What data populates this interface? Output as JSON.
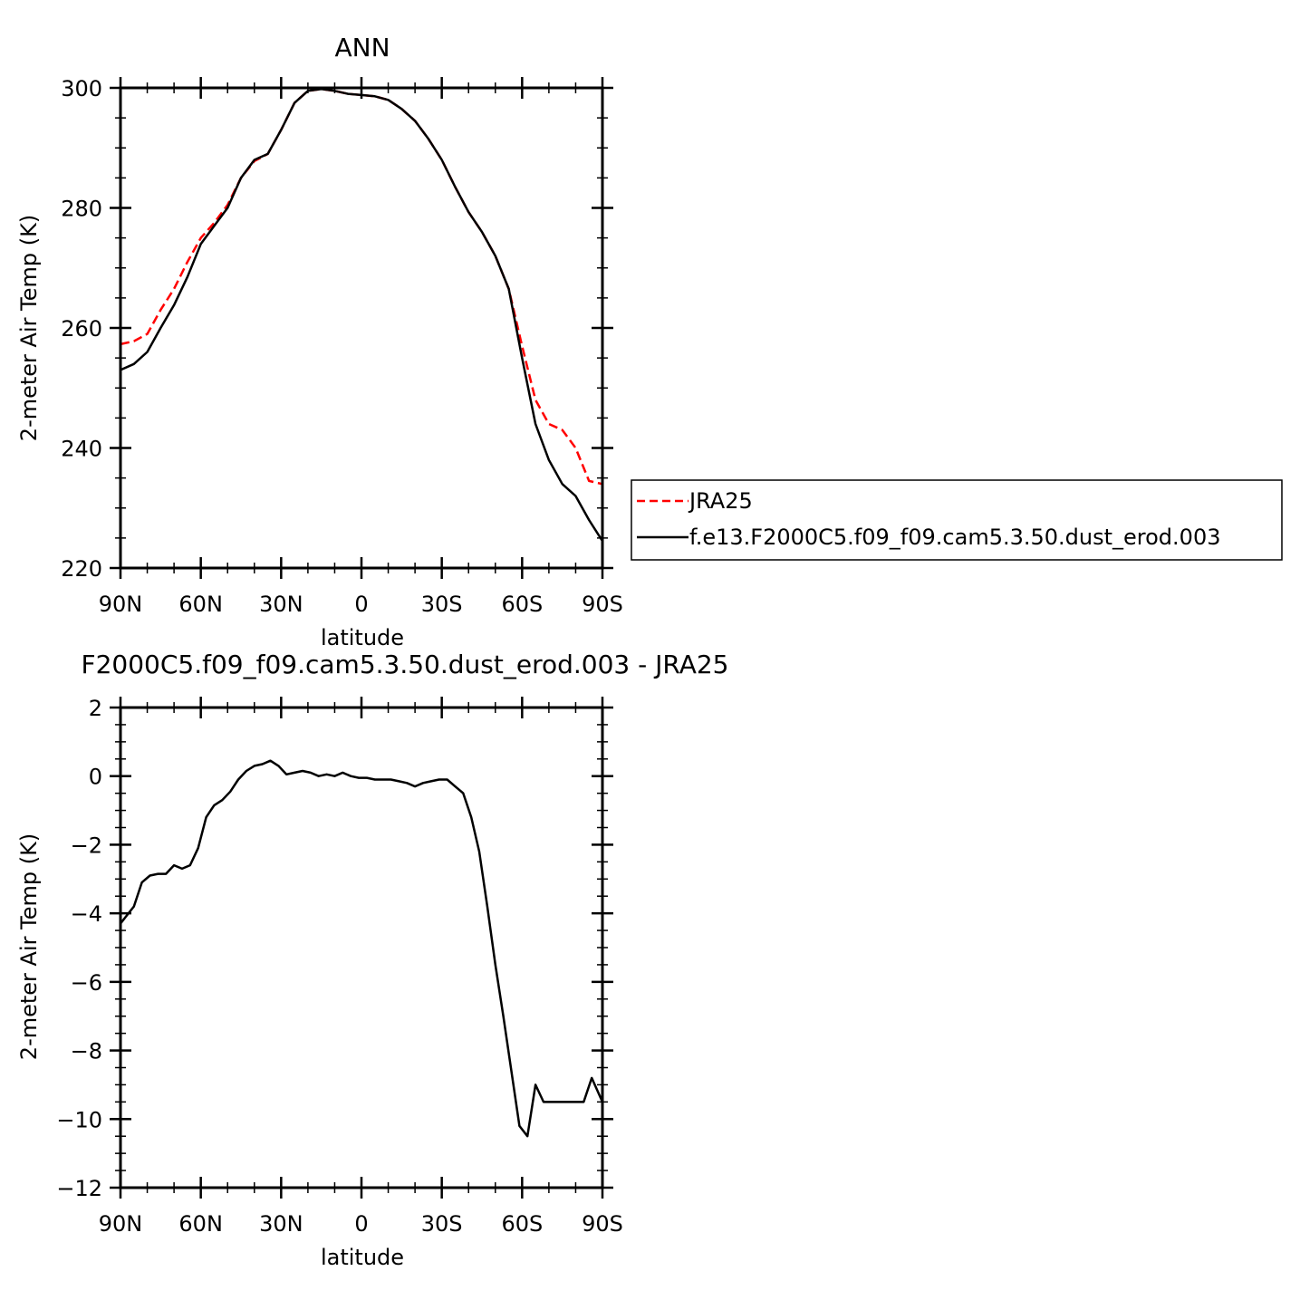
{
  "chart_data": [
    {
      "type": "line",
      "title": "ANN",
      "xlabel": "latitude",
      "ylabel": "2-meter Air Temp (K)",
      "x_ticks": [
        "90N",
        "60N",
        "30N",
        "0",
        "30S",
        "60S",
        "90S"
      ],
      "y_ticks": [
        "220",
        "240",
        "260",
        "280",
        "300"
      ],
      "xlim": [
        90,
        -90
      ],
      "ylim": [
        220,
        300
      ],
      "legend_position": "right",
      "legend": [
        "JRA25",
        "f.e13.F2000C5.f09_f09.cam5.3.50.dust_erod.003"
      ],
      "series": [
        {
          "name": "JRA25",
          "color": "#ff0000",
          "dash": "dashed",
          "x": [
            90,
            85,
            80,
            75,
            70,
            65,
            60,
            55,
            50,
            45,
            40,
            35,
            30,
            25,
            20,
            15,
            10,
            5,
            0,
            -5,
            -10,
            -15,
            -20,
            -25,
            -30,
            -35,
            -40,
            -45,
            -50,
            -55,
            -60,
            -65,
            -70,
            -75,
            -80,
            -85,
            -90
          ],
          "y": [
            257.3,
            257.8,
            259.0,
            263.0,
            266.5,
            271.0,
            275.0,
            277.5,
            280.5,
            285.0,
            287.8,
            289.0,
            293.0,
            297.5,
            299.5,
            299.8,
            299.5,
            299.0,
            298.8,
            298.6,
            298.0,
            296.5,
            294.5,
            291.5,
            288.0,
            283.5,
            279.3,
            276.0,
            272.0,
            266.5,
            257.0,
            248.0,
            244.0,
            243.0,
            240.0,
            234.5,
            234.0
          ]
        },
        {
          "name": "f.e13.F2000C5.f09_f09.cam5.3.50.dust_erod.003",
          "color": "#000000",
          "dash": "solid",
          "x": [
            90,
            85,
            80,
            75,
            70,
            65,
            60,
            55,
            50,
            45,
            40,
            35,
            30,
            25,
            20,
            15,
            10,
            5,
            0,
            -5,
            -10,
            -15,
            -20,
            -25,
            -30,
            -35,
            -40,
            -45,
            -50,
            -55,
            -60,
            -65,
            -70,
            -75,
            -80,
            -85,
            -90
          ],
          "y": [
            253.0,
            254.0,
            256.0,
            260.0,
            263.8,
            268.5,
            274.0,
            277.0,
            280.0,
            285.0,
            288.0,
            289.0,
            293.0,
            297.5,
            299.5,
            299.8,
            299.5,
            299.0,
            298.8,
            298.6,
            298.0,
            296.5,
            294.5,
            291.5,
            288.0,
            283.5,
            279.3,
            276.0,
            272.0,
            266.5,
            255.0,
            244.0,
            238.0,
            234.0,
            232.0,
            228.0,
            224.5
          ]
        }
      ]
    },
    {
      "type": "line",
      "title": "F2000C5.f09_f09.cam5.3.50.dust_erod.003 - JRA25",
      "xlabel": "latitude",
      "ylabel": "2-meter Air Temp (K)",
      "x_ticks": [
        "90N",
        "60N",
        "30N",
        "0",
        "30S",
        "60S",
        "90S"
      ],
      "y_ticks": [
        "-12",
        "-10",
        "-8",
        "-6",
        "-4",
        "-2",
        "0",
        "2"
      ],
      "xlim": [
        90,
        -90
      ],
      "ylim": [
        -12,
        2
      ],
      "series": [
        {
          "color": "#000000",
          "dash": "solid",
          "x": [
            90,
            88,
            85,
            82,
            79,
            76,
            73,
            70,
            67,
            64,
            61,
            58,
            55,
            52,
            49,
            46,
            43,
            40,
            37,
            34,
            31,
            28,
            25,
            22,
            19,
            16,
            13,
            10,
            7,
            4,
            1,
            -2,
            -5,
            -8,
            -11,
            -14,
            -17,
            -20,
            -23,
            -26,
            -29,
            -32,
            -35,
            -38,
            -41,
            -44,
            -47,
            -50,
            -53,
            -56,
            -59,
            -62,
            -65,
            -68,
            -71,
            -74,
            -77,
            -80,
            -83,
            -86,
            -90
          ],
          "y": [
            -4.3,
            -4.1,
            -3.8,
            -3.1,
            -2.9,
            -2.85,
            -2.85,
            -2.6,
            -2.7,
            -2.6,
            -2.1,
            -1.2,
            -0.85,
            -0.7,
            -0.45,
            -0.1,
            0.15,
            0.3,
            0.35,
            0.45,
            0.3,
            0.05,
            0.1,
            0.15,
            0.1,
            0.0,
            0.05,
            0.0,
            0.1,
            0.0,
            -0.05,
            -0.05,
            -0.1,
            -0.1,
            -0.1,
            -0.15,
            -0.2,
            -0.3,
            -0.2,
            -0.15,
            -0.1,
            -0.1,
            -0.3,
            -0.5,
            -1.2,
            -2.2,
            -3.8,
            -5.5,
            -7.0,
            -8.6,
            -10.2,
            -10.5,
            -9.0,
            -9.5,
            -9.5,
            -9.5,
            -9.5,
            -9.5,
            -9.5,
            -8.8,
            -9.5
          ]
        }
      ]
    }
  ]
}
